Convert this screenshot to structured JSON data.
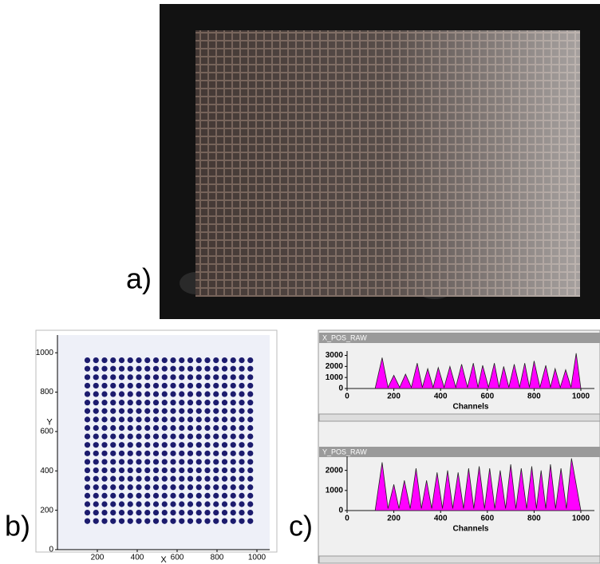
{
  "panel_labels": [
    "a)",
    "b)",
    "c)"
  ],
  "chart_data": [
    {
      "type": "scatter",
      "xlabel": "X",
      "ylabel": "Y",
      "color": "#1c1c6e",
      "xlim": [
        0,
        1064
      ],
      "ylim": [
        0,
        1090
      ],
      "xticks": [
        200,
        400,
        600,
        800,
        1000
      ],
      "yticks": [
        0,
        200,
        400,
        600,
        800,
        1000
      ],
      "x": [
        150,
        193,
        236,
        279,
        322,
        365,
        408,
        451,
        494,
        537,
        580,
        623,
        666,
        709,
        752,
        795,
        838,
        881,
        924,
        967,
        150,
        193,
        236,
        279,
        322,
        365,
        408,
        451,
        494,
        537,
        580,
        623,
        666,
        709,
        752,
        795,
        838,
        881,
        924,
        967,
        150,
        193,
        236,
        279,
        322,
        365,
        408,
        451,
        494,
        537,
        580,
        623,
        666,
        709,
        752,
        795,
        838,
        881,
        924,
        967,
        150,
        193,
        236,
        279,
        322,
        365,
        408,
        451,
        494,
        537,
        580,
        623,
        666,
        709,
        752,
        795,
        838,
        881,
        924,
        967,
        150,
        193,
        236,
        279,
        322,
        365,
        408,
        451,
        494,
        537,
        580,
        623,
        666,
        709,
        752,
        795,
        838,
        881,
        924,
        967,
        150,
        193,
        236,
        279,
        322,
        365,
        408,
        451,
        494,
        537,
        580,
        623,
        666,
        709,
        752,
        795,
        838,
        881,
        924,
        967,
        150,
        193,
        236,
        279,
        322,
        365,
        408,
        451,
        494,
        537,
        580,
        623,
        666,
        709,
        752,
        795,
        838,
        881,
        924,
        967,
        150,
        193,
        236,
        279,
        322,
        365,
        408,
        451,
        494,
        537,
        580,
        623,
        666,
        709,
        752,
        795,
        838,
        881,
        924,
        967,
        150,
        193,
        236,
        279,
        322,
        365,
        408,
        451,
        494,
        537,
        580,
        623,
        666,
        709,
        752,
        795,
        838,
        881,
        924,
        967,
        150,
        193,
        236,
        279,
        322,
        365,
        408,
        451,
        494,
        537,
        580,
        623,
        666,
        709,
        752,
        795,
        838,
        881,
        924,
        967,
        150,
        193,
        236,
        279,
        322,
        365,
        408,
        451,
        494,
        537,
        580,
        623,
        666,
        709,
        752,
        795,
        838,
        881,
        924,
        967,
        150,
        193,
        236,
        279,
        322,
        365,
        408,
        451,
        494,
        537,
        580,
        623,
        666,
        709,
        752,
        795,
        838,
        881,
        924,
        967,
        150,
        193,
        236,
        279,
        322,
        365,
        408,
        451,
        494,
        537,
        580,
        623,
        666,
        709,
        752,
        795,
        838,
        881,
        924,
        967,
        150,
        193,
        236,
        279,
        322,
        365,
        408,
        451,
        494,
        537,
        580,
        623,
        666,
        709,
        752,
        795,
        838,
        881,
        924,
        967,
        150,
        193,
        236,
        279,
        322,
        365,
        408,
        451,
        494,
        537,
        580,
        623,
        666,
        709,
        752,
        795,
        838,
        881,
        924,
        967,
        150,
        193,
        236,
        279,
        322,
        365,
        408,
        451,
        494,
        537,
        580,
        623,
        666,
        709,
        752,
        795,
        838,
        881,
        924,
        967,
        150,
        193,
        236,
        279,
        322,
        365,
        408,
        451,
        494,
        537,
        580,
        623,
        666,
        709,
        752,
        795,
        838,
        881,
        924,
        967,
        150,
        193,
        236,
        279,
        322,
        365,
        408,
        451,
        494,
        537,
        580,
        623,
        666,
        709,
        752,
        795,
        838,
        881,
        924,
        967,
        150,
        193,
        236,
        279,
        322,
        365,
        408,
        451,
        494,
        537,
        580,
        623,
        666,
        709,
        752,
        795,
        838,
        881,
        924,
        967,
        150,
        193,
        236,
        279,
        322,
        365,
        408,
        451,
        494,
        537,
        580,
        623,
        666,
        709,
        752,
        795,
        838,
        881,
        924,
        967
      ],
      "values": [
        145,
        145,
        145,
        145,
        145,
        145,
        145,
        145,
        145,
        145,
        145,
        145,
        145,
        145,
        145,
        145,
        145,
        145,
        145,
        145,
        188,
        188,
        188,
        188,
        188,
        188,
        188,
        188,
        188,
        188,
        188,
        188,
        188,
        188,
        188,
        188,
        188,
        188,
        188,
        188,
        231,
        231,
        231,
        231,
        231,
        231,
        231,
        231,
        231,
        231,
        231,
        231,
        231,
        231,
        231,
        231,
        231,
        231,
        231,
        231,
        274,
        274,
        274,
        274,
        274,
        274,
        274,
        274,
        274,
        274,
        274,
        274,
        274,
        274,
        274,
        274,
        274,
        274,
        274,
        274,
        317,
        317,
        317,
        317,
        317,
        317,
        317,
        317,
        317,
        317,
        317,
        317,
        317,
        317,
        317,
        317,
        317,
        317,
        317,
        317,
        360,
        360,
        360,
        360,
        360,
        360,
        360,
        360,
        360,
        360,
        360,
        360,
        360,
        360,
        360,
        360,
        360,
        360,
        360,
        360,
        403,
        403,
        403,
        403,
        403,
        403,
        403,
        403,
        403,
        403,
        403,
        403,
        403,
        403,
        403,
        403,
        403,
        403,
        403,
        403,
        446,
        446,
        446,
        446,
        446,
        446,
        446,
        446,
        446,
        446,
        446,
        446,
        446,
        446,
        446,
        446,
        446,
        446,
        446,
        446,
        489,
        489,
        489,
        489,
        489,
        489,
        489,
        489,
        489,
        489,
        489,
        489,
        489,
        489,
        489,
        489,
        489,
        489,
        489,
        489,
        532,
        532,
        532,
        532,
        532,
        532,
        532,
        532,
        532,
        532,
        532,
        532,
        532,
        532,
        532,
        532,
        532,
        532,
        532,
        532,
        575,
        575,
        575,
        575,
        575,
        575,
        575,
        575,
        575,
        575,
        575,
        575,
        575,
        575,
        575,
        575,
        575,
        575,
        575,
        575,
        618,
        618,
        618,
        618,
        618,
        618,
        618,
        618,
        618,
        618,
        618,
        618,
        618,
        618,
        618,
        618,
        618,
        618,
        618,
        618,
        661,
        661,
        661,
        661,
        661,
        661,
        661,
        661,
        661,
        661,
        661,
        661,
        661,
        661,
        661,
        661,
        661,
        661,
        661,
        661,
        704,
        704,
        704,
        704,
        704,
        704,
        704,
        704,
        704,
        704,
        704,
        704,
        704,
        704,
        704,
        704,
        704,
        704,
        704,
        704,
        747,
        747,
        747,
        747,
        747,
        747,
        747,
        747,
        747,
        747,
        747,
        747,
        747,
        747,
        747,
        747,
        747,
        747,
        747,
        747,
        790,
        790,
        790,
        790,
        790,
        790,
        790,
        790,
        790,
        790,
        790,
        790,
        790,
        790,
        790,
        790,
        790,
        790,
        790,
        790,
        833,
        833,
        833,
        833,
        833,
        833,
        833,
        833,
        833,
        833,
        833,
        833,
        833,
        833,
        833,
        833,
        833,
        833,
        833,
        833,
        876,
        876,
        876,
        876,
        876,
        876,
        876,
        876,
        876,
        876,
        876,
        876,
        876,
        876,
        876,
        876,
        876,
        876,
        876,
        876,
        919,
        919,
        919,
        919,
        919,
        919,
        919,
        919,
        919,
        919,
        919,
        919,
        919,
        919,
        919,
        919,
        919,
        919,
        919,
        919,
        962,
        962,
        962,
        962,
        962,
        962,
        962,
        962,
        962,
        962,
        962,
        962,
        962,
        962,
        962,
        962,
        962,
        962,
        962,
        962
      ]
    },
    {
      "type": "area",
      "title": "X_POS_RAW",
      "xlabel": "Channels",
      "color": "#ff00ff",
      "xlim": [
        0,
        1058
      ],
      "ylim": [
        0,
        3400
      ],
      "xticks": [
        0,
        200,
        400,
        600,
        800,
        1000
      ],
      "yticks": [
        0,
        1000,
        2000,
        3000
      ],
      "x": [
        0,
        120,
        150,
        175,
        200,
        225,
        250,
        275,
        300,
        322,
        345,
        368,
        390,
        415,
        440,
        465,
        490,
        515,
        540,
        560,
        580,
        605,
        630,
        650,
        670,
        692,
        715,
        738,
        760,
        780,
        800,
        825,
        850,
        870,
        890,
        912,
        935,
        958,
        980,
        1000,
        1058
      ],
      "values": [
        0,
        0,
        2800,
        100,
        1200,
        100,
        1300,
        100,
        2300,
        100,
        1800,
        100,
        1900,
        100,
        2000,
        100,
        2200,
        100,
        2300,
        100,
        2100,
        100,
        2300,
        100,
        2000,
        100,
        2200,
        100,
        2300,
        100,
        2500,
        100,
        2100,
        100,
        1800,
        100,
        1700,
        100,
        3200,
        0,
        0
      ]
    },
    {
      "type": "area",
      "title": "Y_POS_RAW",
      "xlabel": "Channels",
      "color": "#ff00ff",
      "xlim": [
        0,
        1058
      ],
      "ylim": [
        0,
        2700
      ],
      "xticks": [
        0,
        200,
        400,
        600,
        800,
        1000
      ],
      "yticks": [
        0,
        1000,
        2000
      ],
      "x": [
        0,
        120,
        150,
        175,
        200,
        222,
        245,
        270,
        295,
        318,
        340,
        362,
        385,
        408,
        430,
        452,
        475,
        498,
        520,
        542,
        565,
        588,
        610,
        632,
        655,
        678,
        700,
        722,
        745,
        768,
        790,
        810,
        830,
        850,
        870,
        892,
        915,
        938,
        960,
        1000,
        1058
      ],
      "values": [
        0,
        0,
        2400,
        100,
        1300,
        100,
        1500,
        100,
        2100,
        100,
        1500,
        100,
        1900,
        100,
        2000,
        100,
        1900,
        100,
        2100,
        100,
        2200,
        100,
        2100,
        100,
        2000,
        100,
        2300,
        100,
        2100,
        100,
        2200,
        100,
        2000,
        100,
        2300,
        100,
        2100,
        100,
        2600,
        0,
        0
      ]
    }
  ]
}
